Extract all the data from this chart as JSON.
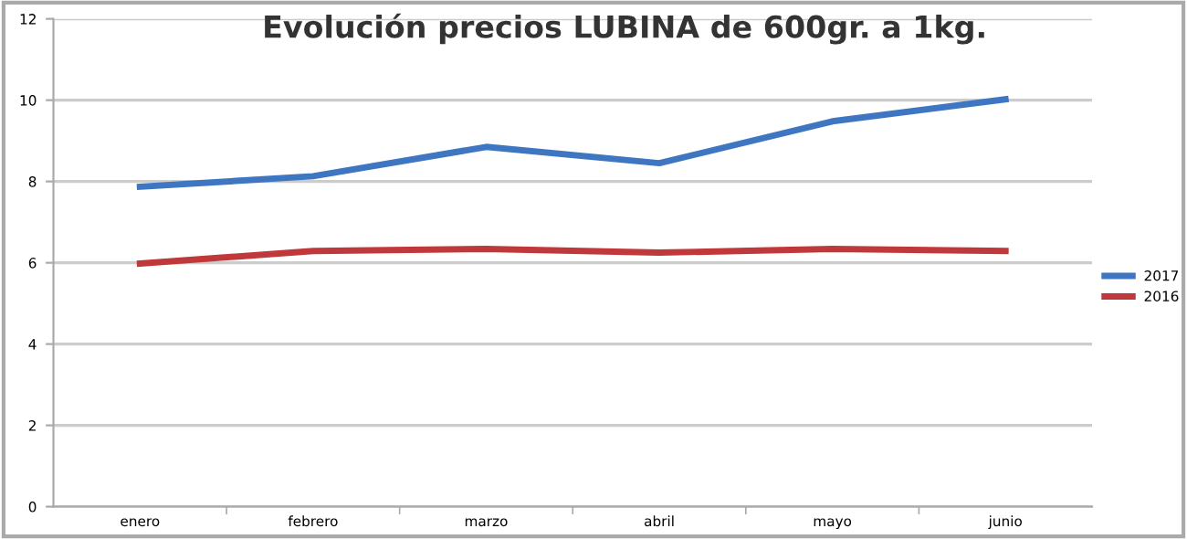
{
  "chart_data": {
    "type": "line",
    "title": "Evolución precios LUBINA de 600gr. a 1kg.",
    "categories": [
      "enero",
      "febrero",
      "marzo",
      "abril",
      "mayo",
      "junio"
    ],
    "series": [
      {
        "name": "2017",
        "color": "#3f76c2",
        "values": [
          7.87,
          8.13,
          8.85,
          8.45,
          9.48,
          10.02
        ]
      },
      {
        "name": "2016",
        "color": "#c0383a",
        "values": [
          5.98,
          6.29,
          6.34,
          6.25,
          6.34,
          6.29
        ]
      }
    ],
    "ylim": [
      0,
      12
    ],
    "yticks": [
      0,
      2,
      4,
      6,
      8,
      10,
      12
    ],
    "grid": "y",
    "legend": "right",
    "marker": "none",
    "line_style": "solid"
  }
}
